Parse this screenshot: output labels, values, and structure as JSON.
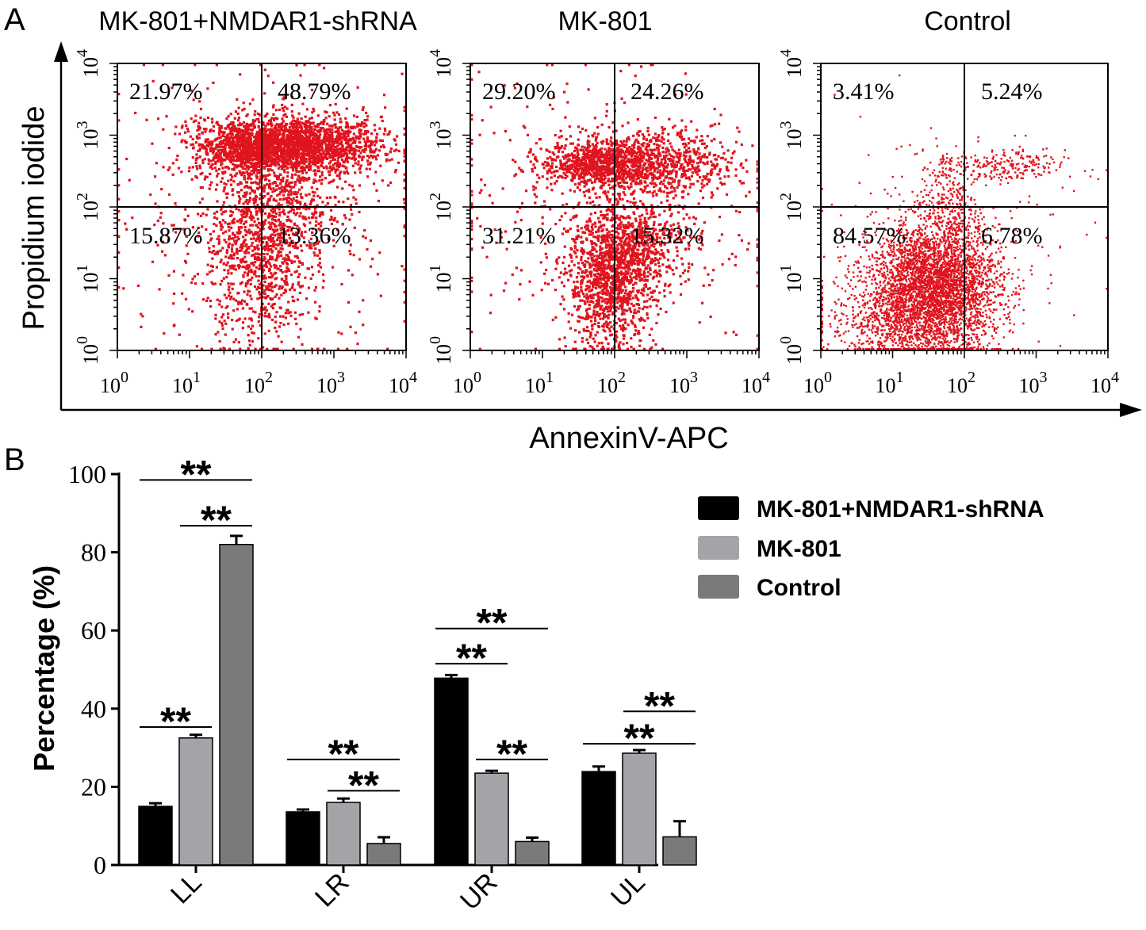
{
  "panel_a": {
    "label": "A",
    "y_axis_title": "Propidium iodide",
    "x_axis_title": "AnnexinV-APC",
    "tick_labels": [
      "10",
      "10",
      "10",
      "10",
      "10"
    ],
    "tick_exponents": [
      "0",
      "1",
      "2",
      "3",
      "4"
    ],
    "scatter_color": "#e0141e"
  },
  "panel_b": {
    "label": "B",
    "legend_colors": [
      "#000000",
      "#a3a3a8",
      "#7a7a7a"
    ],
    "significance_label": "**"
  },
  "chart_data": [
    {
      "type": "scatter",
      "title": "MK-801+NMDAR1-shRNA",
      "xlabel": "AnnexinV-APC",
      "ylabel": "Propidium iodide",
      "xscale": "log",
      "yscale": "log",
      "xlim": [
        1,
        10000
      ],
      "ylim": [
        1,
        10000
      ],
      "gate": [
        100,
        100
      ],
      "quadrants": {
        "UL": "21.97%",
        "UR": "48.79%",
        "LL": "15.87%",
        "LR": "13.36%"
      },
      "clusters": [
        {
          "cx": 2.55,
          "cy": 2.85,
          "sx": 0.55,
          "sy": 0.2,
          "n": 1700
        },
        {
          "cx": 1.75,
          "cy": 2.85,
          "sx": 0.35,
          "sy": 0.18,
          "n": 700
        },
        {
          "cx": 1.95,
          "cy": 1.2,
          "sx": 0.35,
          "sy": 0.55,
          "n": 650
        },
        {
          "cx": 2.2,
          "cy": 2.05,
          "sx": 0.45,
          "sy": 0.5,
          "n": 650
        },
        {
          "cx": 2.0,
          "cy": 2.0,
          "sx": 1.1,
          "sy": 1.0,
          "n": 450
        }
      ]
    },
    {
      "type": "scatter",
      "title": "MK-801",
      "xlabel": "AnnexinV-APC",
      "ylabel": "Propidium iodide",
      "xscale": "log",
      "yscale": "log",
      "xlim": [
        1,
        10000
      ],
      "ylim": [
        1,
        10000
      ],
      "gate": [
        100,
        100
      ],
      "quadrants": {
        "UL": "29.20%",
        "UR": "24.26%",
        "LL": "31.21%",
        "LR": "15.32%"
      },
      "clusters": [
        {
          "cx": 1.95,
          "cy": 0.95,
          "sx": 0.3,
          "sy": 0.45,
          "n": 1100
        },
        {
          "cx": 2.3,
          "cy": 1.5,
          "sx": 0.35,
          "sy": 0.3,
          "n": 500
        },
        {
          "cx": 1.8,
          "cy": 2.6,
          "sx": 0.4,
          "sy": 0.15,
          "n": 800
        },
        {
          "cx": 2.6,
          "cy": 2.6,
          "sx": 0.55,
          "sy": 0.25,
          "n": 700
        },
        {
          "cx": 1.8,
          "cy": 1.9,
          "sx": 1.1,
          "sy": 1.0,
          "n": 450
        }
      ]
    },
    {
      "type": "scatter",
      "title": "Control",
      "xlabel": "AnnexinV-APC",
      "ylabel": "Propidium iodide",
      "xscale": "log",
      "yscale": "log",
      "xlim": [
        1,
        10000
      ],
      "ylim": [
        1,
        10000
      ],
      "gate": [
        100,
        100
      ],
      "quadrants": {
        "UL": "3.41%",
        "UR": "5.24%",
        "LL": "84.57%",
        "LR": "6.78%"
      },
      "clusters": [
        {
          "cx": 1.6,
          "cy": 0.9,
          "sx": 0.45,
          "sy": 0.45,
          "n": 3200
        },
        {
          "cx": 1.2,
          "cy": 0.5,
          "sx": 0.55,
          "sy": 0.35,
          "n": 900
        },
        {
          "cx": 2.5,
          "cy": 2.55,
          "sx": 0.45,
          "sy": 0.12,
          "n": 250
        },
        {
          "cx": 1.8,
          "cy": 2.0,
          "sx": 0.2,
          "sy": 0.4,
          "n": 250
        },
        {
          "cx": 1.6,
          "cy": 1.6,
          "sx": 1.0,
          "sy": 0.9,
          "n": 150
        }
      ]
    },
    {
      "type": "bar",
      "title": "",
      "xlabel": "",
      "ylabel": "Percentage (%)",
      "ylim": [
        0,
        100
      ],
      "yticks": [
        0,
        20,
        40,
        60,
        80,
        100
      ],
      "categories": [
        "LL",
        "LR",
        "UR",
        "UL"
      ],
      "series": [
        {
          "name": "MK-801+NMDAR1-shRNA",
          "values": [
            15.0,
            13.6,
            47.8,
            23.9
          ],
          "errors": [
            0.8,
            0.6,
            0.8,
            1.3
          ]
        },
        {
          "name": "MK-801",
          "values": [
            32.5,
            16.0,
            23.5,
            28.6
          ],
          "errors": [
            0.8,
            1.0,
            0.6,
            0.8
          ]
        },
        {
          "name": "Control",
          "values": [
            82.0,
            5.5,
            6.0,
            7.2
          ],
          "errors": [
            2.2,
            1.6,
            1.0,
            4.0
          ]
        }
      ],
      "significance": [
        {
          "category": "LL",
          "from": 0,
          "to": 2,
          "label": "**",
          "y": 98.5
        },
        {
          "category": "LL",
          "from": 1,
          "to": 2,
          "label": "**",
          "y": 86.8
        },
        {
          "category": "LL",
          "from": 0,
          "to": 1,
          "label": "**",
          "y": 35.3
        },
        {
          "category": "LR",
          "from": 0,
          "to": 2,
          "label": "**",
          "y": 27.0
        },
        {
          "category": "LR",
          "from": 1,
          "to": 2,
          "label": "**",
          "y": 19.0
        },
        {
          "category": "UR",
          "from": 0,
          "to": 2,
          "label": "**",
          "y": 60.5
        },
        {
          "category": "UR",
          "from": 0,
          "to": 1,
          "label": "**",
          "y": 51.5
        },
        {
          "category": "UR",
          "from": 1,
          "to": 2,
          "label": "**",
          "y": 27.0
        },
        {
          "category": "UL",
          "from": 1,
          "to": 2,
          "label": "**",
          "y": 39.3
        },
        {
          "category": "UL",
          "from": 0,
          "to": 2,
          "label": "**",
          "y": 31.0
        }
      ]
    }
  ]
}
